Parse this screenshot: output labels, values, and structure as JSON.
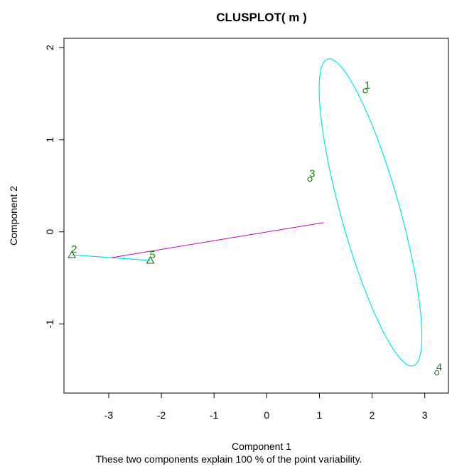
{
  "chart_data": {
    "type": "scatter",
    "title": "CLUSPLOT( m )",
    "xlabel": "Component 1",
    "ylabel": "Component 2",
    "subtitle": "These two components explain 100 % of the point variability.",
    "xlim": [
      -3.85,
      3.45
    ],
    "ylim": [
      -1.75,
      2.1
    ],
    "x_ticks": [
      -3,
      -2,
      -1,
      0,
      1,
      2,
      3
    ],
    "x_tick_labels": [
      "-3",
      "-2",
      "-1",
      "0",
      "1",
      "2",
      "3"
    ],
    "y_ticks": [
      -1,
      0,
      1,
      2
    ],
    "y_tick_labels": [
      "-1",
      "0",
      "1",
      "2"
    ],
    "points": [
      {
        "label": "1",
        "x": 1.87,
        "y": 1.53,
        "cluster": 1,
        "marker": "circle"
      },
      {
        "label": "2",
        "x": -3.7,
        "y": -0.25,
        "cluster": 2,
        "marker": "triangle"
      },
      {
        "label": "3",
        "x": 0.82,
        "y": 0.57,
        "cluster": 1,
        "marker": "circle"
      },
      {
        "label": "4",
        "x": 3.23,
        "y": -1.53,
        "cluster": 1,
        "marker": "circle"
      },
      {
        "label": "5",
        "x": -2.21,
        "y": -0.31,
        "cluster": 2,
        "marker": "triangle"
      }
    ],
    "clusters": [
      {
        "id": 1,
        "shape": "ellipse",
        "center": [
          1.97,
          0.21
        ],
        "axis_a": 1.86,
        "axis_b": 0.52,
        "angle_deg": -62.5
      },
      {
        "id": 2,
        "shape": "segment",
        "from": [
          -3.7,
          -0.25
        ],
        "to": [
          -2.21,
          -0.31
        ]
      }
    ],
    "connector": {
      "from": [
        -2.95,
        -0.28
      ],
      "to": [
        1.08,
        0.1
      ]
    },
    "colors": {
      "cluster_outline": "#00e5ee",
      "connector": "#c000c0",
      "points": "#006400",
      "labels": "#1a8a1a",
      "axes": "#000000"
    },
    "grid": false
  }
}
